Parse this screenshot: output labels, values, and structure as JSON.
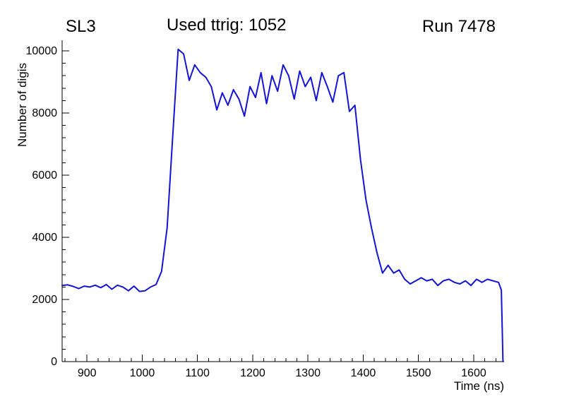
{
  "header": {
    "left": "SL3",
    "title": "Used ttrig: 1052",
    "right": "Run 7478"
  },
  "chart_data": {
    "type": "line",
    "title": "Used ttrig: 1052",
    "pad_label_left": "SL3",
    "pad_label_right": "Run 7478",
    "xlabel": "Time (ns)",
    "ylabel": "Number of digis",
    "xlim": [
      855,
      1655
    ],
    "ylim": [
      0,
      10340
    ],
    "x_major_ticks": [
      900,
      1000,
      1100,
      1200,
      1300,
      1400,
      1500,
      1600
    ],
    "x_minor_step": 20,
    "y_major_ticks": [
      0,
      2000,
      4000,
      6000,
      8000,
      10000
    ],
    "y_minor_step": 400,
    "grid": false,
    "legend": null,
    "line_color": "#1414d6",
    "line_width": 2,
    "axis_color": "#000000",
    "series": [
      {
        "name": "number-of-digis-vs-time",
        "points": [
          [
            855,
            2450
          ],
          [
            865,
            2470
          ],
          [
            875,
            2420
          ],
          [
            885,
            2350
          ],
          [
            895,
            2430
          ],
          [
            905,
            2400
          ],
          [
            915,
            2460
          ],
          [
            925,
            2380
          ],
          [
            935,
            2480
          ],
          [
            945,
            2330
          ],
          [
            955,
            2460
          ],
          [
            965,
            2400
          ],
          [
            975,
            2280
          ],
          [
            985,
            2430
          ],
          [
            995,
            2260
          ],
          [
            1005,
            2280
          ],
          [
            1015,
            2400
          ],
          [
            1025,
            2480
          ],
          [
            1035,
            2900
          ],
          [
            1045,
            4300
          ],
          [
            1055,
            7200
          ],
          [
            1065,
            10050
          ],
          [
            1075,
            9900
          ],
          [
            1085,
            9050
          ],
          [
            1095,
            9550
          ],
          [
            1105,
            9300
          ],
          [
            1115,
            9150
          ],
          [
            1125,
            8850
          ],
          [
            1135,
            8100
          ],
          [
            1145,
            8650
          ],
          [
            1155,
            8250
          ],
          [
            1165,
            8750
          ],
          [
            1175,
            8450
          ],
          [
            1185,
            7900
          ],
          [
            1195,
            8850
          ],
          [
            1205,
            8500
          ],
          [
            1215,
            9300
          ],
          [
            1225,
            8300
          ],
          [
            1235,
            9200
          ],
          [
            1245,
            8700
          ],
          [
            1255,
            9550
          ],
          [
            1265,
            9200
          ],
          [
            1275,
            8450
          ],
          [
            1285,
            9350
          ],
          [
            1295,
            8850
          ],
          [
            1305,
            9150
          ],
          [
            1315,
            8400
          ],
          [
            1325,
            9300
          ],
          [
            1335,
            8850
          ],
          [
            1345,
            8350
          ],
          [
            1355,
            9200
          ],
          [
            1365,
            9300
          ],
          [
            1375,
            8050
          ],
          [
            1385,
            8250
          ],
          [
            1395,
            6500
          ],
          [
            1405,
            5200
          ],
          [
            1415,
            4300
          ],
          [
            1425,
            3500
          ],
          [
            1435,
            2850
          ],
          [
            1445,
            3100
          ],
          [
            1455,
            2850
          ],
          [
            1465,
            2950
          ],
          [
            1475,
            2650
          ],
          [
            1485,
            2500
          ],
          [
            1495,
            2600
          ],
          [
            1505,
            2700
          ],
          [
            1515,
            2600
          ],
          [
            1525,
            2650
          ],
          [
            1535,
            2450
          ],
          [
            1545,
            2600
          ],
          [
            1555,
            2650
          ],
          [
            1565,
            2550
          ],
          [
            1575,
            2500
          ],
          [
            1585,
            2600
          ],
          [
            1595,
            2450
          ],
          [
            1605,
            2650
          ],
          [
            1615,
            2550
          ],
          [
            1625,
            2650
          ],
          [
            1635,
            2600
          ],
          [
            1645,
            2550
          ],
          [
            1650,
            2300
          ],
          [
            1653,
            0
          ]
        ]
      }
    ]
  }
}
